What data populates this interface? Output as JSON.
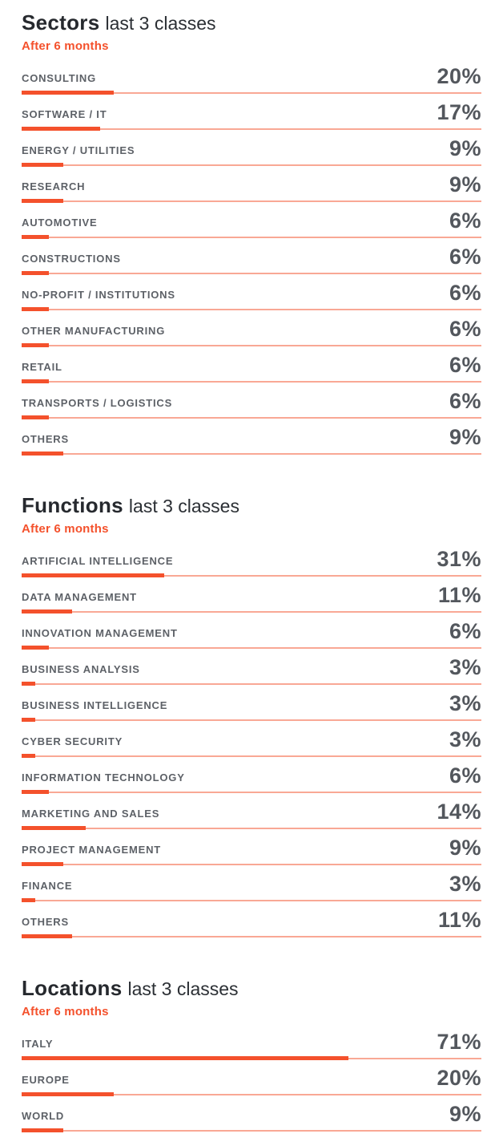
{
  "colors": {
    "accent": "#f4512c",
    "accent_track": "rgba(244,81,44,0.5)",
    "heading_text": "#26292e",
    "label_text": "#5d6167",
    "value_text": "#53575d",
    "page_background": "#ffffff"
  },
  "chart_data": [
    {
      "type": "bar",
      "orientation": "horizontal",
      "title": "Sectors",
      "title_suffix": "last 3 classes",
      "subtitle": "After 6 months",
      "unit": "%",
      "xlim": [
        0,
        100
      ],
      "grid": false,
      "legend": false,
      "categories": [
        "CONSULTING",
        "SOFTWARE / IT",
        "ENERGY / UTILITIES",
        "RESEARCH",
        "AUTOMOTIVE",
        "CONSTRUCTIONS",
        "NO-PROFIT / INSTITUTIONS",
        "OTHER MANUFACTURING",
        "RETAIL",
        "TRANSPORTS / LOGISTICS",
        "OTHERS"
      ],
      "values": [
        20,
        17,
        9,
        9,
        6,
        6,
        6,
        6,
        6,
        6,
        9
      ],
      "value_labels": [
        "20%",
        "17%",
        "9%",
        "9%",
        "6%",
        "6%",
        "6%",
        "6%",
        "6%",
        "6%",
        "9%"
      ]
    },
    {
      "type": "bar",
      "orientation": "horizontal",
      "title": "Functions",
      "title_suffix": "last 3 classes",
      "subtitle": "After 6 months",
      "unit": "%",
      "xlim": [
        0,
        100
      ],
      "grid": false,
      "legend": false,
      "categories": [
        "ARTIFICIAL INTELLIGENCE",
        "DATA MANAGEMENT",
        "INNOVATION MANAGEMENT",
        "BUSINESS ANALYSIS",
        "BUSINESS INTELLIGENCE",
        "CYBER SECURITY",
        "INFORMATION TECHNOLOGY",
        "MARKETING AND SALES",
        "PROJECT MANAGEMENT",
        "FINANCE",
        "OTHERS"
      ],
      "values": [
        31,
        11,
        6,
        3,
        3,
        3,
        6,
        14,
        9,
        3,
        11
      ],
      "value_labels": [
        "31%",
        "11%",
        "6%",
        "3%",
        "3%",
        "3%",
        "6%",
        "14%",
        "9%",
        "3%",
        "11%"
      ]
    },
    {
      "type": "bar",
      "orientation": "horizontal",
      "title": "Locations",
      "title_suffix": "last 3 classes",
      "subtitle": "After 6 months",
      "unit": "%",
      "xlim": [
        0,
        100
      ],
      "grid": false,
      "legend": false,
      "categories": [
        "ITALY",
        "EUROPE",
        "WORLD"
      ],
      "values": [
        71,
        20,
        9
      ],
      "value_labels": [
        "71%",
        "20%",
        "9%"
      ]
    }
  ]
}
